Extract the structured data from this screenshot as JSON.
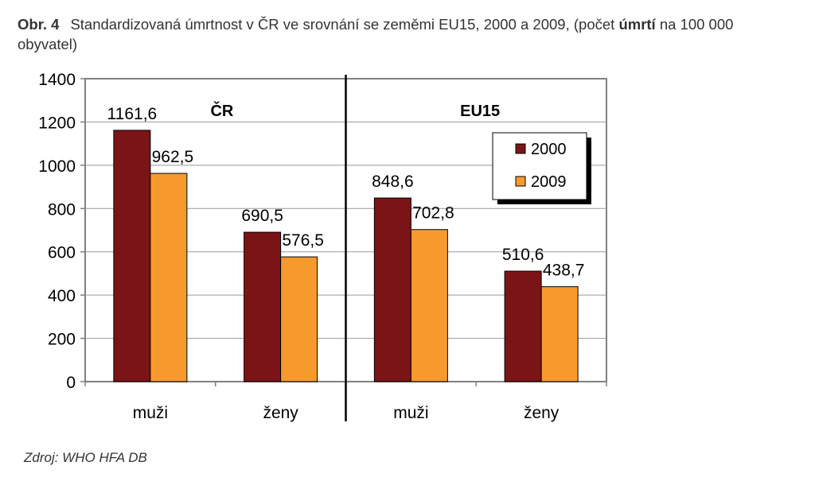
{
  "caption": {
    "figure_label": "Obr. 4",
    "text_before_bold": "Standardizovaná úmrtnost v ČR ve srovnání se zeměmi EU15, 2000 a 2009, (počet ",
    "bold_word": "úmrtí",
    "text_after_bold": " na 100 000 obyvatel)"
  },
  "source": "Zdroj: WHO HFA DB",
  "colors": {
    "series_2000": "#7b1416",
    "series_2009": "#f79a2e",
    "plot_background": "#ffffff",
    "gridline": "#999999",
    "axis": "#808080",
    "divider": "#000000"
  },
  "chart_data": {
    "type": "bar",
    "groups": [
      "ČR",
      "EU15"
    ],
    "categories": [
      "muži",
      "ženy",
      "muži",
      "ženy"
    ],
    "category_group": [
      0,
      0,
      1,
      1
    ],
    "series": [
      {
        "name": "2000",
        "values": [
          1161.6,
          690.5,
          848.6,
          510.6
        ]
      },
      {
        "name": "2009",
        "values": [
          962.5,
          576.5,
          702.8,
          438.7
        ]
      }
    ],
    "data_labels": [
      [
        "1161,6",
        "690,5",
        "848,6",
        "510,6"
      ],
      [
        "962,5",
        "576,5",
        "702,8",
        "438,7"
      ]
    ],
    "y_ticks": [
      "0",
      "200",
      "400",
      "600",
      "800",
      "1000",
      "1200",
      "1400"
    ],
    "ylim": [
      0,
      1400
    ],
    "grid": true,
    "legend_position": "top-right"
  }
}
